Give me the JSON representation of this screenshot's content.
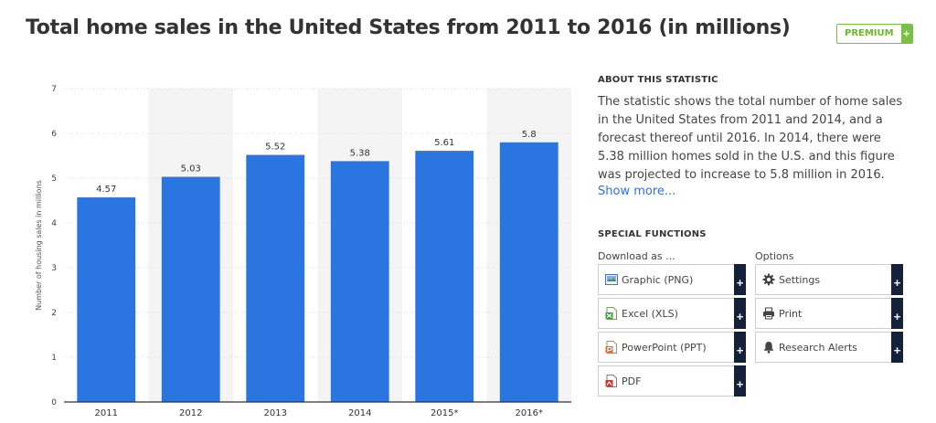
{
  "page": {
    "title": "Total home sales in the United States from 2011 to 2016 (in millions)",
    "premium_label": "PREMIUM",
    "premium_plus": "+"
  },
  "about": {
    "heading": "ABOUT THIS STATISTIC",
    "text": "The statistic shows the total number of home sales in the United States from 2011 and 2014, and a forecast thereof until 2016. In 2014, there were 5.38 million homes sold in the U.S. and this figure was projected to increase to 5.8 million in 2016.",
    "show_more": "Show more..."
  },
  "special_functions": {
    "heading": "SPECIAL FUNCTIONS",
    "download_label": "Download as ...",
    "options_label": "Options",
    "download": [
      {
        "label": "Graphic (PNG)",
        "icon": "image-file-icon"
      },
      {
        "label": "Excel (XLS)",
        "icon": "excel-file-icon"
      },
      {
        "label": "PowerPoint (PPT)",
        "icon": "powerpoint-file-icon"
      },
      {
        "label": "PDF",
        "icon": "pdf-file-icon"
      }
    ],
    "options": [
      {
        "label": "Settings",
        "icon": "gear-icon"
      },
      {
        "label": "Print",
        "icon": "printer-icon"
      },
      {
        "label": "Research Alerts",
        "icon": "bell-icon"
      }
    ],
    "plus": "+"
  },
  "chart_data": {
    "type": "bar",
    "categories": [
      "2011",
      "2012",
      "2013",
      "2014",
      "2015*",
      "2016*"
    ],
    "values": [
      4.57,
      5.03,
      5.52,
      5.38,
      5.61,
      5.8
    ],
    "value_labels": [
      "4.57",
      "5.03",
      "5.52",
      "5.38",
      "5.61",
      "5.8"
    ],
    "yticks": [
      "0",
      "1",
      "2",
      "3",
      "4",
      "5",
      "6",
      "7"
    ],
    "ylim": [
      0,
      7
    ],
    "ylabel": "Number of housing sales in millions",
    "xlabel": "",
    "grid": true,
    "colors": {
      "bar": "#2a75e0",
      "band": "#f4f4f4",
      "grid": "#dddddd",
      "axis": "#333333"
    }
  }
}
